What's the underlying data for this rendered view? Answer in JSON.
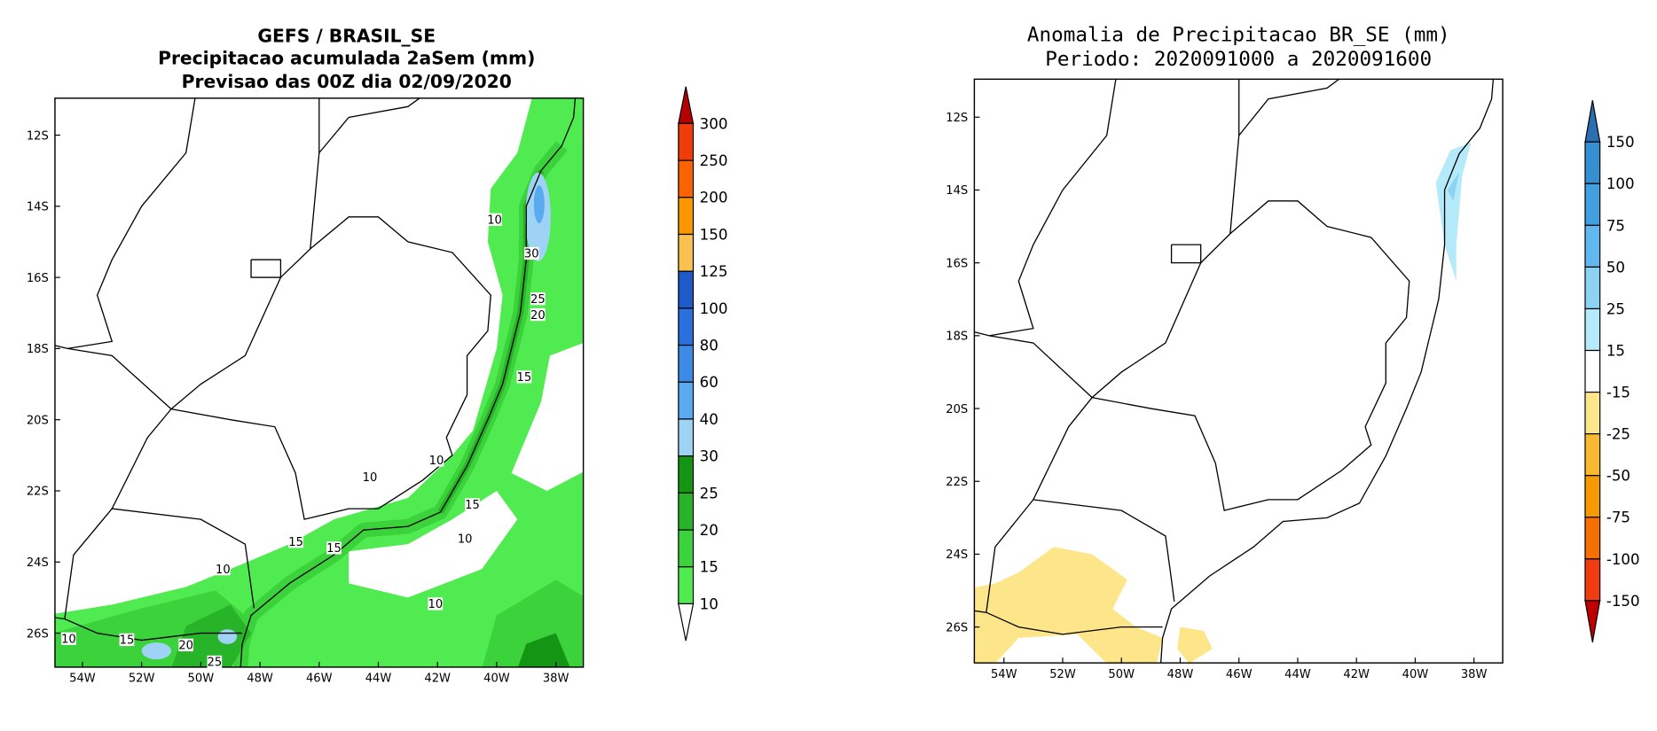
{
  "left": {
    "title": [
      "GEFS / BRASIL_SE",
      "Precipitacao acumulada 2aSem (mm)",
      "Previsao das 00Z dia 02/09/2020"
    ],
    "lat_labels": [
      "12S",
      "14S",
      "16S",
      "18S",
      "20S",
      "22S",
      "24S",
      "26S"
    ],
    "lon_labels": [
      "54W",
      "52W",
      "50W",
      "48W",
      "46W",
      "44W",
      "42W",
      "40W",
      "38W"
    ],
    "colorbar": {
      "labels": [
        300,
        250,
        200,
        150,
        125,
        100,
        80,
        60,
        40,
        30,
        25,
        20,
        15,
        10
      ],
      "colors": [
        "#b40000",
        "#f03c0a",
        "#fa6400",
        "#fa9600",
        "#fac050",
        "#1e5ac8",
        "#2a70dc",
        "#3c8ce6",
        "#5aaaf0",
        "#9fd3f5",
        "#149614",
        "#28b428",
        "#3cd23c",
        "#50eb50",
        "#ffffff"
      ]
    },
    "contour_labels": [
      10,
      30,
      25,
      20,
      15,
      10,
      10,
      15,
      15,
      15,
      10,
      10,
      10,
      10,
      15,
      20,
      25
    ]
  },
  "right": {
    "title": [
      "Anomalia de Precipitacao BR_SE (mm)",
      "Periodo: 2020091000 a 2020091600"
    ],
    "lat_labels": [
      "12S",
      "14S",
      "16S",
      "18S",
      "20S",
      "22S",
      "24S",
      "26S"
    ],
    "lon_labels": [
      "54W",
      "52W",
      "50W",
      "48W",
      "46W",
      "44W",
      "42W",
      "40W",
      "38W"
    ],
    "colorbar": {
      "labels": [
        150,
        100,
        75,
        50,
        25,
        15,
        -15,
        -25,
        -50,
        -75,
        -100,
        -150
      ],
      "colors": [
        "#2a6fb0",
        "#3490d0",
        "#40a0e0",
        "#60b8ee",
        "#8cd2f5",
        "#b4eafa",
        "#ffffff",
        "#fde68a",
        "#f8b830",
        "#f59a00",
        "#f57000",
        "#f03c10",
        "#c00000"
      ]
    }
  }
}
